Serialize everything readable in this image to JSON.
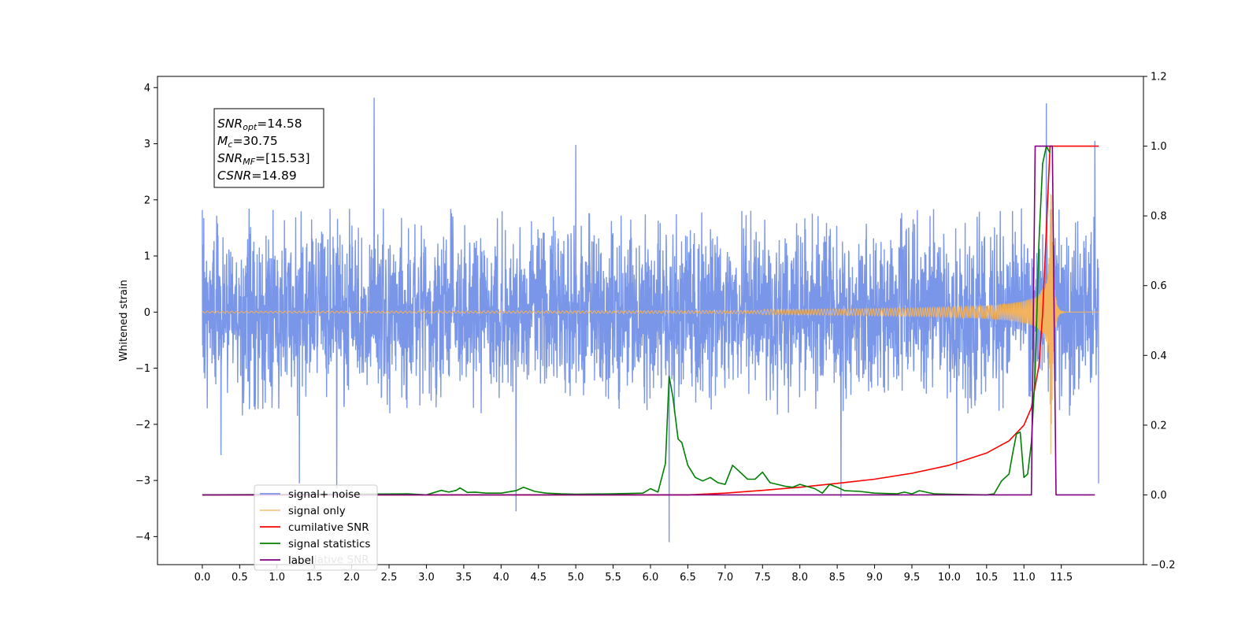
{
  "chart_data": {
    "type": "line",
    "ylabel": "Whitened strain",
    "xlim": [
      -0.6,
      12.6
    ],
    "ylim": [
      -4.5,
      4.2
    ],
    "y2lim": [
      -0.2,
      1.2
    ],
    "x_ticks": [
      0.0,
      0.5,
      1.0,
      1.5,
      2.0,
      2.5,
      3.0,
      3.5,
      4.0,
      4.5,
      5.0,
      5.5,
      6.0,
      6.5,
      7.0,
      7.5,
      8.0,
      8.5,
      9.0,
      9.5,
      10.0,
      10.5,
      11.0,
      11.5
    ],
    "x_tick_labels": [
      "0.0",
      "0.5",
      "1.0",
      "1.5",
      "2.0",
      "2.5",
      "3.0",
      "3.5",
      "4.0",
      "4.5",
      "5.0",
      "5.5",
      "6.0",
      "6.5",
      "7.0",
      "7.5",
      "8.0",
      "8.5",
      "9.0",
      "9.5",
      "10.0",
      "10.5",
      "11.0",
      "11.5"
    ],
    "y_ticks": [
      4,
      3,
      2,
      1,
      0,
      -1,
      -2,
      -3,
      -4
    ],
    "y_tick_labels": [
      "4",
      "3",
      "2",
      "1",
      "0",
      "−1",
      "−2",
      "−3",
      "−4"
    ],
    "y2_ticks": [
      1.2,
      1.0,
      0.8,
      0.6,
      0.4,
      0.2,
      0.0,
      -0.2
    ],
    "y2_tick_labels": [
      "1.2",
      "1.0",
      "0.8",
      "0.6",
      "0.4",
      "0.2",
      "0.0",
      "−0.2"
    ],
    "grid": false,
    "legend_position": "lower-left",
    "annotation": {
      "lines": [
        {
          "sym": "SNR",
          "sub": "opt",
          "val": "=14.58"
        },
        {
          "sym": "M",
          "sub": "c",
          "val": "=30.75"
        },
        {
          "sym": "SNR",
          "sub": "MF",
          "val": "=[15.53]"
        },
        {
          "sym": "CSNR",
          "sub": "",
          "val": "=14.89"
        }
      ]
    },
    "series": [
      {
        "name": "signal+ noise",
        "axis": "left",
        "color": "#7a96e8",
        "x_range": [
          0.0,
          12.0
        ],
        "noise_envelope": 1.85,
        "spikes": [
          [
            0.0,
            1.82
          ],
          [
            0.25,
            -2.55
          ],
          [
            1.3,
            -3.05
          ],
          [
            1.8,
            -3.15
          ],
          [
            2.3,
            3.82
          ],
          [
            4.2,
            -3.55
          ],
          [
            5.0,
            2.98
          ],
          [
            6.25,
            -4.1
          ],
          [
            8.55,
            -3.3
          ],
          [
            10.1,
            -2.8
          ],
          [
            11.3,
            3.72
          ],
          [
            11.95,
            3.05
          ],
          [
            12.0,
            -3.05
          ]
        ]
      },
      {
        "name": "signal only",
        "axis": "left",
        "color": "#f2b25e",
        "x_range": [
          0.0,
          12.0
        ],
        "chirp_peak_time": 11.3,
        "chirp_peak_amplitude": 3.0
      },
      {
        "name": "cumilative SNR",
        "axis": "right",
        "color": "#ff0000",
        "x": [
          0.0,
          6.5,
          7.0,
          7.5,
          8.0,
          8.5,
          9.0,
          9.5,
          10.0,
          10.5,
          10.8,
          11.0,
          11.1,
          11.2,
          11.25,
          11.3,
          11.35,
          12.0
        ],
        "y": [
          0.0,
          0.0,
          0.005,
          0.013,
          0.022,
          0.033,
          0.045,
          0.062,
          0.085,
          0.12,
          0.155,
          0.2,
          0.25,
          0.37,
          0.52,
          0.76,
          1.0,
          1.0
        ]
      },
      {
        "name": "signal statistics",
        "axis": "right",
        "color": "#008000",
        "x": [
          0.0,
          2.75,
          3.0,
          3.2,
          3.3,
          3.4,
          3.45,
          3.55,
          3.65,
          3.8,
          4.0,
          4.2,
          4.3,
          4.45,
          4.6,
          4.8,
          5.0,
          5.5,
          5.9,
          6.0,
          6.1,
          6.2,
          6.25,
          6.3,
          6.37,
          6.42,
          6.5,
          6.6,
          6.7,
          6.8,
          6.9,
          7.0,
          7.1,
          7.2,
          7.3,
          7.4,
          7.5,
          7.6,
          7.8,
          7.9,
          8.0,
          8.2,
          8.3,
          8.4,
          8.5,
          8.6,
          8.8,
          9.0,
          9.3,
          9.4,
          9.5,
          9.6,
          9.8,
          10.0,
          10.5,
          10.6,
          10.7,
          10.8,
          10.85,
          10.9,
          10.95,
          11.0,
          11.05,
          11.1,
          11.15,
          11.2,
          11.25,
          11.3,
          11.35
        ],
        "y": [
          0.0,
          0.003,
          0.0,
          0.013,
          0.008,
          0.013,
          0.02,
          0.007,
          0.008,
          0.005,
          0.005,
          0.012,
          0.022,
          0.01,
          0.005,
          0.003,
          0.002,
          0.003,
          0.005,
          0.018,
          0.008,
          0.09,
          0.34,
          0.28,
          0.16,
          0.15,
          0.085,
          0.05,
          0.04,
          0.05,
          0.035,
          0.03,
          0.085,
          0.065,
          0.045,
          0.045,
          0.065,
          0.035,
          0.025,
          0.022,
          0.03,
          0.018,
          0.005,
          0.03,
          0.022,
          0.012,
          0.01,
          0.005,
          0.003,
          0.008,
          0.003,
          0.012,
          0.003,
          0.002,
          0.0,
          0.003,
          0.04,
          0.06,
          0.12,
          0.175,
          0.18,
          0.05,
          0.06,
          0.15,
          0.35,
          0.72,
          0.95,
          1.0,
          0.98
        ]
      },
      {
        "name": "label",
        "axis": "right",
        "color": "#800080",
        "x": [
          0.0,
          11.1,
          11.15,
          11.38,
          11.43,
          11.95
        ],
        "y": [
          0.0,
          0.0,
          1.0,
          1.0,
          0.0,
          0.0
        ]
      }
    ],
    "hidden_legend_entry": "cumilative SNR"
  }
}
